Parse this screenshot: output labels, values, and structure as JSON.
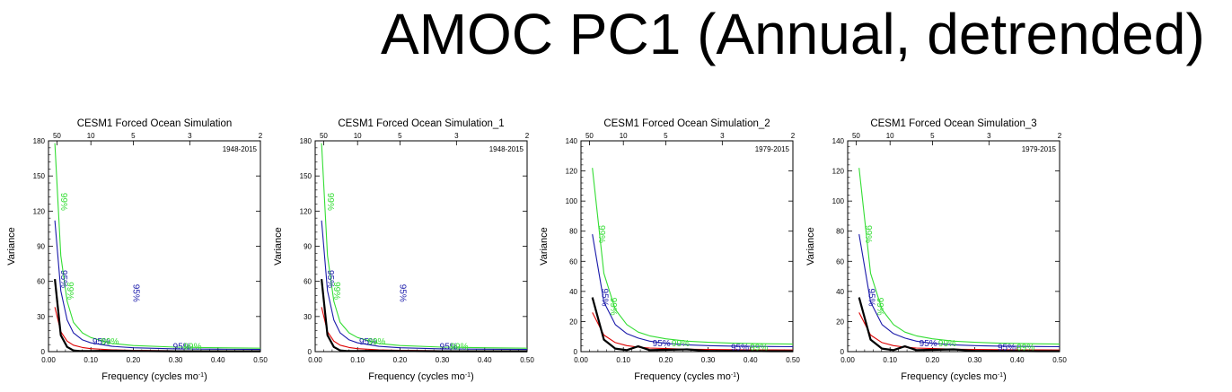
{
  "main_title": "AMOC PC1 (Annual, detrended)",
  "colors": {
    "spectrum": "#000000",
    "red_noise": "#dd0000",
    "ci95": "#1a1aaa",
    "ci99": "#33dd33"
  },
  "chart_data": [
    {
      "type": "line",
      "title": "CESM1 Forced Ocean Simulation",
      "period": "1948-2015",
      "xlabel": "Frequency (cycles mo",
      "xlabel_sup": "-1",
      "xlabel_end": ")",
      "ylabel": "Variance",
      "xlim": [
        0,
        0.5
      ],
      "ylim": [
        0,
        180
      ],
      "yticks": [
        0,
        30,
        60,
        90,
        120,
        150,
        180
      ],
      "xticks": [
        0,
        0.1,
        0.2,
        0.3,
        0.4,
        0.5
      ],
      "xtick_labels": [
        "0.00",
        "0.10",
        "0.20",
        "0.30",
        "0.40",
        "0.50"
      ],
      "top_ticks": [
        50,
        10,
        5,
        3,
        2
      ],
      "series": [
        {
          "name": "spectrum",
          "x": [
            0.015,
            0.029,
            0.044,
            0.059,
            0.074,
            0.1,
            0.15,
            0.2,
            0.3,
            0.4,
            0.5
          ],
          "values": [
            62,
            14,
            4,
            1,
            0.5,
            0.5,
            0.8,
            0.5,
            0.3,
            0.3,
            0.3
          ]
        },
        {
          "name": "red_noise",
          "x": [
            0.015,
            0.029,
            0.044,
            0.059,
            0.08,
            0.1,
            0.15,
            0.2,
            0.3,
            0.4,
            0.5
          ],
          "values": [
            38,
            17,
            9,
            5.5,
            3.5,
            2.5,
            1.5,
            1.1,
            0.8,
            0.7,
            0.6
          ]
        },
        {
          "name": "95%",
          "x": [
            0.015,
            0.029,
            0.044,
            0.059,
            0.08,
            0.1,
            0.15,
            0.2,
            0.3,
            0.4,
            0.5
          ],
          "values": [
            112,
            52,
            27,
            16,
            10,
            7.5,
            4.5,
            3.3,
            2.4,
            2.1,
            1.8
          ]
        },
        {
          "name": "99%",
          "x": [
            0.015,
            0.029,
            0.044,
            0.059,
            0.08,
            0.1,
            0.15,
            0.2,
            0.3,
            0.4,
            0.5
          ],
          "values": [
            178,
            82,
            43,
            25,
            16,
            12,
            7,
            5.2,
            3.8,
            3.3,
            2.9
          ]
        }
      ],
      "annotations": [
        {
          "text": "99%",
          "series": "99%",
          "x": 0.03,
          "y": 128,
          "rotate": 90
        },
        {
          "text": "95%",
          "series": "95%",
          "x": 0.03,
          "y": 62,
          "rotate": 90
        },
        {
          "text": "99%",
          "series": "99%",
          "x": 0.045,
          "y": 52,
          "rotate": 90
        },
        {
          "text": "95%",
          "series": "95%",
          "x": 0.2,
          "y": 50,
          "rotate": 90
        },
        {
          "text": "95%",
          "series": "95%",
          "x": 0.125,
          "y": 6,
          "rotate": 0
        },
        {
          "text": "99%",
          "series": "99%",
          "x": 0.145,
          "y": 6,
          "rotate": 0
        },
        {
          "text": "95%",
          "series": "95%",
          "x": 0.315,
          "y": 2,
          "rotate": 0
        },
        {
          "text": "99%",
          "series": "99%",
          "x": 0.34,
          "y": 2,
          "rotate": 0
        }
      ]
    },
    {
      "type": "line",
      "title": "CESM1 Forced Ocean Simulation_1",
      "period": "1948-2015",
      "xlabel": "Frequency (cycles mo",
      "xlabel_sup": "-1",
      "xlabel_end": ")",
      "ylabel": "Variance",
      "xlim": [
        0,
        0.5
      ],
      "ylim": [
        0,
        180
      ],
      "yticks": [
        0,
        30,
        60,
        90,
        120,
        150,
        180
      ],
      "xticks": [
        0,
        0.1,
        0.2,
        0.3,
        0.4,
        0.5
      ],
      "xtick_labels": [
        "0.00",
        "0.10",
        "0.20",
        "0.30",
        "0.40",
        "0.50"
      ],
      "top_ticks": [
        50,
        10,
        5,
        3,
        2
      ],
      "series": [
        {
          "name": "spectrum",
          "x": [
            0.015,
            0.029,
            0.044,
            0.059,
            0.074,
            0.1,
            0.15,
            0.2,
            0.3,
            0.4,
            0.5
          ],
          "values": [
            62,
            14,
            4,
            1,
            0.5,
            0.5,
            0.8,
            0.5,
            0.3,
            0.3,
            0.3
          ]
        },
        {
          "name": "red_noise",
          "x": [
            0.015,
            0.029,
            0.044,
            0.059,
            0.08,
            0.1,
            0.15,
            0.2,
            0.3,
            0.4,
            0.5
          ],
          "values": [
            38,
            17,
            9,
            5.5,
            3.5,
            2.5,
            1.5,
            1.1,
            0.8,
            0.7,
            0.6
          ]
        },
        {
          "name": "95%",
          "x": [
            0.015,
            0.029,
            0.044,
            0.059,
            0.08,
            0.1,
            0.15,
            0.2,
            0.3,
            0.4,
            0.5
          ],
          "values": [
            112,
            52,
            27,
            16,
            10,
            7.5,
            4.5,
            3.3,
            2.4,
            2.1,
            1.8
          ]
        },
        {
          "name": "99%",
          "x": [
            0.015,
            0.029,
            0.044,
            0.059,
            0.08,
            0.1,
            0.15,
            0.2,
            0.3,
            0.4,
            0.5
          ],
          "values": [
            178,
            82,
            43,
            25,
            16,
            12,
            7,
            5.2,
            3.8,
            3.3,
            2.9
          ]
        }
      ],
      "annotations": [
        {
          "text": "99%",
          "series": "99%",
          "x": 0.03,
          "y": 128,
          "rotate": 90
        },
        {
          "text": "95%",
          "series": "95%",
          "x": 0.03,
          "y": 62,
          "rotate": 90
        },
        {
          "text": "99%",
          "series": "99%",
          "x": 0.045,
          "y": 52,
          "rotate": 90
        },
        {
          "text": "95%",
          "series": "95%",
          "x": 0.2,
          "y": 50,
          "rotate": 90
        },
        {
          "text": "95%",
          "series": "95%",
          "x": 0.125,
          "y": 6,
          "rotate": 0
        },
        {
          "text": "99%",
          "series": "99%",
          "x": 0.145,
          "y": 6,
          "rotate": 0
        },
        {
          "text": "95%",
          "series": "95%",
          "x": 0.315,
          "y": 2,
          "rotate": 0
        },
        {
          "text": "99%",
          "series": "99%",
          "x": 0.34,
          "y": 2,
          "rotate": 0
        }
      ]
    },
    {
      "type": "line",
      "title": "CESM1 Forced Ocean Simulation_2",
      "period": "1979-2015",
      "xlabel": "Frequency (cycles mo",
      "xlabel_sup": "-1",
      "xlabel_end": ")",
      "ylabel": "Variance",
      "xlim": [
        0,
        0.5
      ],
      "ylim": [
        0,
        140
      ],
      "yticks": [
        0,
        20,
        40,
        60,
        80,
        100,
        120,
        140
      ],
      "xticks": [
        0,
        0.1,
        0.2,
        0.3,
        0.4,
        0.5
      ],
      "xtick_labels": [
        "0.00",
        "0.10",
        "0.20",
        "0.30",
        "0.40",
        "0.50"
      ],
      "top_ticks": [
        50,
        10,
        5,
        3,
        2
      ],
      "series": [
        {
          "name": "spectrum",
          "x": [
            0.027,
            0.054,
            0.081,
            0.108,
            0.135,
            0.162,
            0.2,
            0.25,
            0.3,
            0.35,
            0.4,
            0.45,
            0.5
          ],
          "values": [
            36,
            8,
            2,
            1,
            3.5,
            1,
            1.2,
            1.5,
            0.5,
            0.5,
            0.4,
            0.3,
            0.3
          ]
        },
        {
          "name": "red_noise",
          "x": [
            0.027,
            0.054,
            0.081,
            0.108,
            0.135,
            0.162,
            0.2,
            0.25,
            0.3,
            0.35,
            0.4,
            0.45,
            0.5
          ],
          "values": [
            26,
            11,
            6,
            4,
            3,
            2.4,
            2,
            1.6,
            1.4,
            1.3,
            1.2,
            1.15,
            1.1
          ]
        },
        {
          "name": "95%",
          "x": [
            0.027,
            0.054,
            0.081,
            0.108,
            0.135,
            0.162,
            0.2,
            0.25,
            0.3,
            0.35,
            0.4,
            0.45,
            0.5
          ],
          "values": [
            78,
            33,
            18,
            12,
            9,
            7,
            5.5,
            4.5,
            4,
            3.7,
            3.5,
            3.4,
            3.3
          ]
        },
        {
          "name": "99%",
          "x": [
            0.027,
            0.054,
            0.081,
            0.108,
            0.135,
            0.162,
            0.2,
            0.25,
            0.3,
            0.35,
            0.4,
            0.45,
            0.5
          ],
          "values": [
            122,
            52,
            28,
            18,
            13,
            10.5,
            8.5,
            7,
            6.2,
            5.7,
            5.4,
            5.2,
            5
          ]
        }
      ],
      "annotations": [
        {
          "text": "99%",
          "series": "99%",
          "x": 0.042,
          "y": 78,
          "rotate": 90
        },
        {
          "text": "95%",
          "series": "95%",
          "x": 0.05,
          "y": 36,
          "rotate": 90
        },
        {
          "text": "99%",
          "series": "99%",
          "x": 0.07,
          "y": 30,
          "rotate": 90
        },
        {
          "text": "95%",
          "series": "95%",
          "x": 0.19,
          "y": 3.5,
          "rotate": 0
        },
        {
          "text": "99%",
          "series": "99%",
          "x": 0.235,
          "y": 3.5,
          "rotate": 0
        },
        {
          "text": "95%",
          "series": "95%",
          "x": 0.375,
          "y": 1,
          "rotate": 0
        },
        {
          "text": "99%",
          "series": "99%",
          "x": 0.42,
          "y": 1,
          "rotate": 0
        }
      ]
    },
    {
      "type": "line",
      "title": "CESM1 Forced Ocean Simulation_3",
      "period": "1979-2015",
      "xlabel": "Frequency (cycles mo",
      "xlabel_sup": "-1",
      "xlabel_end": ")",
      "ylabel": "Variance",
      "xlim": [
        0,
        0.5
      ],
      "ylim": [
        0,
        140
      ],
      "yticks": [
        0,
        20,
        40,
        60,
        80,
        100,
        120,
        140
      ],
      "xticks": [
        0,
        0.1,
        0.2,
        0.3,
        0.4,
        0.5
      ],
      "xtick_labels": [
        "0.00",
        "0.10",
        "0.20",
        "0.30",
        "0.40",
        "0.50"
      ],
      "top_ticks": [
        50,
        10,
        5,
        3,
        2
      ],
      "series": [
        {
          "name": "spectrum",
          "x": [
            0.027,
            0.054,
            0.081,
            0.108,
            0.135,
            0.162,
            0.2,
            0.25,
            0.3,
            0.35,
            0.4,
            0.45,
            0.5
          ],
          "values": [
            36,
            8,
            2,
            1,
            3.5,
            1,
            1.2,
            1.5,
            0.5,
            0.5,
            0.4,
            0.3,
            0.3
          ]
        },
        {
          "name": "red_noise",
          "x": [
            0.027,
            0.054,
            0.081,
            0.108,
            0.135,
            0.162,
            0.2,
            0.25,
            0.3,
            0.35,
            0.4,
            0.45,
            0.5
          ],
          "values": [
            26,
            11,
            6,
            4,
            3,
            2.4,
            2,
            1.6,
            1.4,
            1.3,
            1.2,
            1.15,
            1.1
          ]
        },
        {
          "name": "95%",
          "x": [
            0.027,
            0.054,
            0.081,
            0.108,
            0.135,
            0.162,
            0.2,
            0.25,
            0.3,
            0.35,
            0.4,
            0.45,
            0.5
          ],
          "values": [
            78,
            33,
            18,
            12,
            9,
            7,
            5.5,
            4.5,
            4,
            3.7,
            3.5,
            3.4,
            3.3
          ]
        },
        {
          "name": "99%",
          "x": [
            0.027,
            0.054,
            0.081,
            0.108,
            0.135,
            0.162,
            0.2,
            0.25,
            0.3,
            0.35,
            0.4,
            0.45,
            0.5
          ],
          "values": [
            122,
            52,
            28,
            18,
            13,
            10.5,
            8.5,
            7,
            6.2,
            5.7,
            5.4,
            5.2,
            5
          ]
        }
      ],
      "annotations": [
        {
          "text": "99%",
          "series": "99%",
          "x": 0.042,
          "y": 78,
          "rotate": 90
        },
        {
          "text": "95%",
          "series": "95%",
          "x": 0.05,
          "y": 36,
          "rotate": 90
        },
        {
          "text": "99%",
          "series": "99%",
          "x": 0.07,
          "y": 30,
          "rotate": 90
        },
        {
          "text": "95%",
          "series": "95%",
          "x": 0.19,
          "y": 3.5,
          "rotate": 0
        },
        {
          "text": "99%",
          "series": "99%",
          "x": 0.235,
          "y": 3.5,
          "rotate": 0
        },
        {
          "text": "95%",
          "series": "95%",
          "x": 0.375,
          "y": 1,
          "rotate": 0
        },
        {
          "text": "99%",
          "series": "99%",
          "x": 0.42,
          "y": 1,
          "rotate": 0
        }
      ]
    }
  ]
}
